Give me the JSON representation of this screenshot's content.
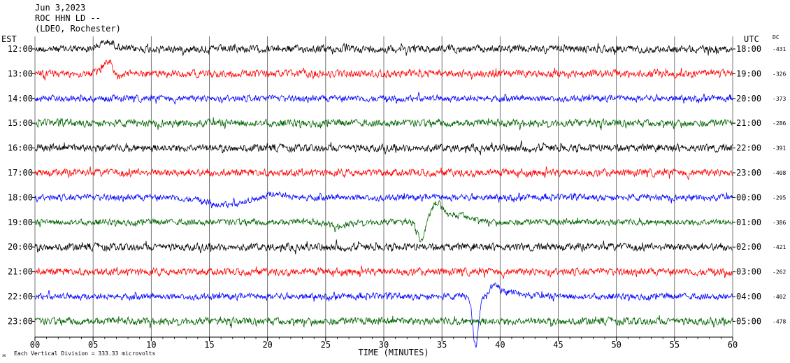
{
  "header": {
    "date": "Jun 3,2023",
    "station": "ROC HHN LD --",
    "network": "(LDEO, Rochester)"
  },
  "left_axis_title": "EST",
  "right_axis_title": "UTC",
  "dc_title": "DC",
  "footer": {
    "scale_text": "Each Vertical Division =  333.33 microvolts",
    "logo_text": "ᴊᴋ"
  },
  "chart_data": {
    "type": "line",
    "xlabel": "TIME (MINUTES)",
    "xlim": [
      0,
      60
    ],
    "x_ticks": [
      "00",
      "05",
      "10",
      "15",
      "20",
      "25",
      "30",
      "35",
      "40",
      "45",
      "50",
      "55",
      "60"
    ],
    "colors": [
      "#000000",
      "#ff0000",
      "#0000ff",
      "#006400"
    ],
    "rows": [
      {
        "est": "12:00",
        "utc": "18:00",
        "dc": "-431",
        "color": "#000000",
        "amp": 7,
        "events": [
          {
            "t": 6.2,
            "a": -10,
            "w": 0.9
          }
        ]
      },
      {
        "est": "13:00",
        "utc": "19:00",
        "dc": "-326",
        "color": "#ff0000",
        "amp": 7,
        "events": [
          {
            "t": 6.3,
            "a": -18,
            "w": 0.6
          },
          {
            "t": 7.2,
            "a": 7,
            "w": 0.5
          }
        ]
      },
      {
        "est": "14:00",
        "utc": "20:00",
        "dc": "-373",
        "color": "#0000ff",
        "amp": 6,
        "events": []
      },
      {
        "est": "15:00",
        "utc": "21:00",
        "dc": "-286",
        "color": "#006400",
        "amp": 7,
        "events": []
      },
      {
        "est": "16:00",
        "utc": "22:00",
        "dc": "-391",
        "color": "#000000",
        "amp": 7,
        "events": []
      },
      {
        "est": "17:00",
        "utc": "23:00",
        "dc": "-408",
        "color": "#ff0000",
        "amp": 7,
        "events": []
      },
      {
        "est": "18:00",
        "utc": "00:00",
        "dc": "-295",
        "color": "#0000ff",
        "amp": 6,
        "events": [
          {
            "t": 16.5,
            "a": 10,
            "w": 2.5
          },
          {
            "t": 20.5,
            "a": -6,
            "w": 1.2
          }
        ]
      },
      {
        "est": "19:00",
        "utc": "01:00",
        "dc": "-386",
        "color": "#006400",
        "amp": 6,
        "events": [
          {
            "t": 26.0,
            "a": 6,
            "w": 1.0
          },
          {
            "t": 33.2,
            "a": 28,
            "w": 0.4
          },
          {
            "t": 34.6,
            "a": -26,
            "w": 0.7
          },
          {
            "t": 36.5,
            "a": -10,
            "w": 1.6
          }
        ]
      },
      {
        "est": "20:00",
        "utc": "02:00",
        "dc": "-421",
        "color": "#000000",
        "amp": 7,
        "events": []
      },
      {
        "est": "21:00",
        "utc": "03:00",
        "dc": "-262",
        "color": "#ff0000",
        "amp": 7,
        "events": []
      },
      {
        "est": "22:00",
        "utc": "04:00",
        "dc": "-402",
        "color": "#0000ff",
        "amp": 6,
        "events": [
          {
            "t": 37.9,
            "a": 70,
            "w": 0.35
          },
          {
            "t": 39.5,
            "a": -15,
            "w": 0.6
          },
          {
            "t": 41.0,
            "a": -6,
            "w": 1.5
          }
        ]
      },
      {
        "est": "23:00",
        "utc": "05:00",
        "dc": "-478",
        "color": "#006400",
        "amp": 7,
        "events": []
      }
    ]
  }
}
